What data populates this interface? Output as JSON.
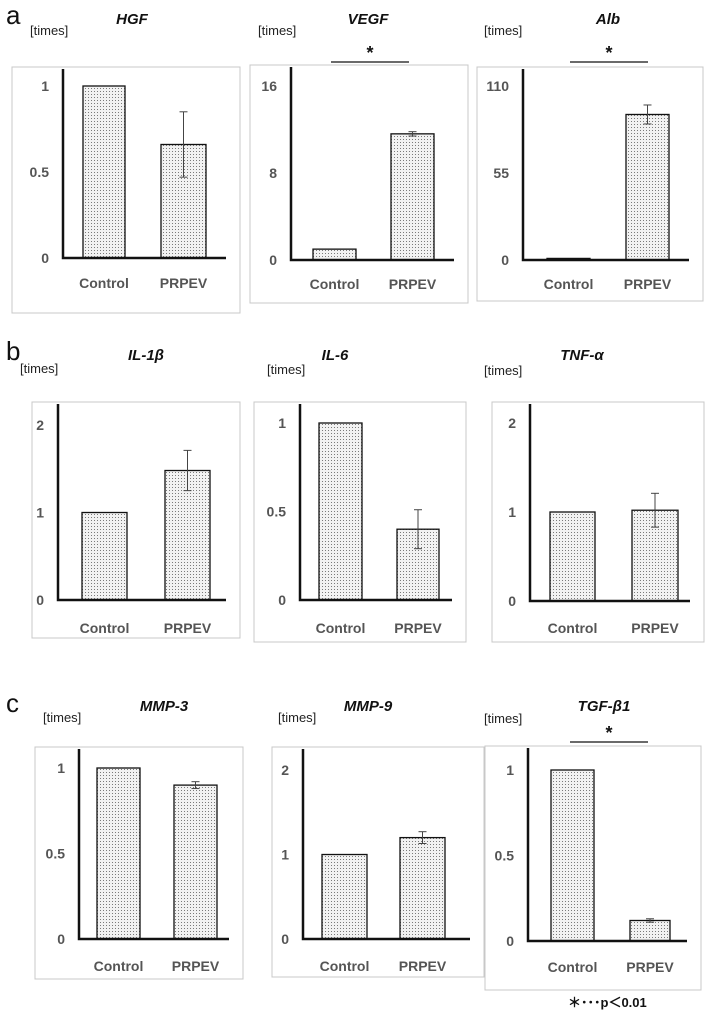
{
  "footnote": "＊･･･p＜0.01",
  "chart_data": [
    {
      "id": "hgf",
      "panel": "a",
      "type": "bar",
      "title": "HGF",
      "unit": "[times]",
      "categories": [
        "Control",
        "PRPEV"
      ],
      "values": [
        1,
        0.66
      ],
      "errors": [
        0,
        0.19
      ],
      "yticks": [
        "1",
        "0.5",
        "0"
      ],
      "ylim": [
        0,
        1
      ],
      "significance": ""
    },
    {
      "id": "vegf",
      "type": "bar",
      "title": "VEGF",
      "unit": "[times]",
      "categories": [
        "Control",
        "PRPEV"
      ],
      "values": [
        1,
        11.6
      ],
      "errors": [
        0,
        0.2
      ],
      "yticks": [
        "16",
        "8",
        "0"
      ],
      "ylim": [
        0,
        16
      ],
      "significance": "*"
    },
    {
      "id": "alb",
      "type": "bar",
      "title": "Alb",
      "unit": "[times]",
      "categories": [
        "Control",
        "PRPEV"
      ],
      "values": [
        1,
        92
      ],
      "errors": [
        0,
        6
      ],
      "yticks": [
        "110",
        "55",
        "0"
      ],
      "ylim": [
        0,
        110
      ],
      "significance": "*"
    },
    {
      "id": "il1b",
      "panel": "b",
      "type": "bar",
      "title": "IL-1β",
      "unit": "[times]",
      "categories": [
        "Control",
        "PRPEV"
      ],
      "values": [
        1,
        1.48
      ],
      "errors": [
        0,
        0.23
      ],
      "yticks": [
        "2",
        "1",
        "0"
      ],
      "ylim": [
        0,
        2
      ],
      "significance": ""
    },
    {
      "id": "il6",
      "type": "bar",
      "title": "IL-6",
      "unit": "[times]",
      "categories": [
        "Control",
        "PRPEV"
      ],
      "values": [
        1,
        0.4
      ],
      "errors": [
        0,
        0.11
      ],
      "yticks": [
        "1",
        "0.5",
        "0"
      ],
      "ylim": [
        0,
        1
      ],
      "significance": ""
    },
    {
      "id": "tnfa",
      "type": "bar",
      "title": "TNF-α",
      "unit": "[times]",
      "categories": [
        "Control",
        "PRPEV"
      ],
      "values": [
        1,
        1.02
      ],
      "errors": [
        0,
        0.19
      ],
      "yticks": [
        "2",
        "1",
        "0"
      ],
      "ylim": [
        0,
        2
      ],
      "significance": ""
    },
    {
      "id": "mmp3",
      "panel": "c",
      "type": "bar",
      "title": "MMP-3",
      "unit": "[times]",
      "categories": [
        "Control",
        "PRPEV"
      ],
      "values": [
        1,
        0.9
      ],
      "errors": [
        0,
        0.02
      ],
      "yticks": [
        "1",
        "0.5",
        "0"
      ],
      "ylim": [
        0,
        1
      ],
      "significance": ""
    },
    {
      "id": "mmp9",
      "type": "bar",
      "title": "MMP-9",
      "unit": "[times]",
      "categories": [
        "Control",
        "PRPEV"
      ],
      "values": [
        1,
        1.2
      ],
      "errors": [
        0,
        0.07
      ],
      "yticks": [
        "2",
        "1",
        "0"
      ],
      "ylim": [
        0,
        2
      ],
      "significance": ""
    },
    {
      "id": "tgfb1",
      "type": "bar",
      "title": "TGF-β1",
      "unit": "[times]",
      "categories": [
        "Control",
        "PRPEV"
      ],
      "values": [
        1,
        0.12
      ],
      "errors": [
        0,
        0.01
      ],
      "yticks": [
        "1",
        "0.5",
        "0"
      ],
      "ylim": [
        0,
        1
      ],
      "significance": "*"
    }
  ]
}
